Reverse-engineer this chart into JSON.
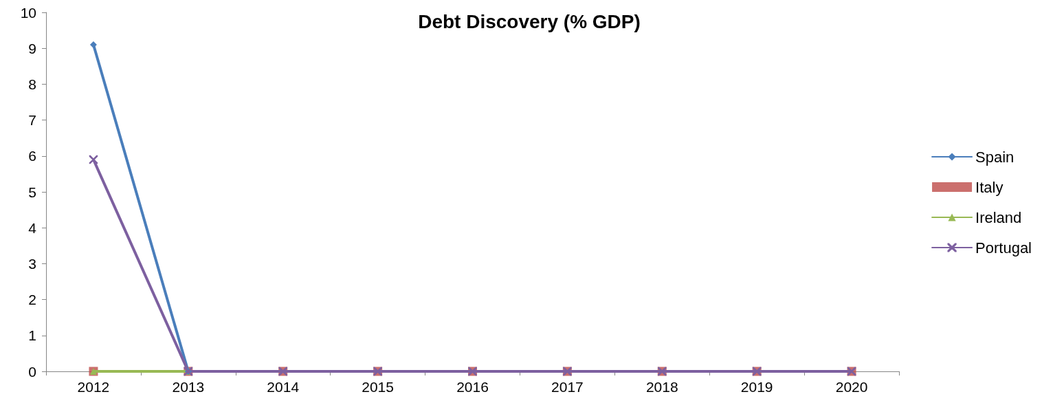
{
  "chart_data": {
    "type": "line",
    "title": "Debt Discovery (% GDP)",
    "categories": [
      "2012",
      "2013",
      "2014",
      "2015",
      "2016",
      "2017",
      "2018",
      "2019",
      "2020"
    ],
    "series": [
      {
        "name": "Italy",
        "type": "scatter",
        "color": "#be4b48",
        "marker": "square",
        "values": [
          0,
          0,
          0,
          0,
          0,
          0,
          0,
          0,
          0
        ]
      },
      {
        "name": "Ireland",
        "color": "#98b954",
        "marker": "triangle",
        "values": [
          0,
          0,
          null,
          null,
          null,
          null,
          null,
          null,
          null
        ]
      },
      {
        "name": "Spain",
        "color": "#4a7ebb",
        "marker": "diamond",
        "values": [
          9.1,
          0,
          null,
          null,
          null,
          null,
          null,
          null,
          null
        ]
      },
      {
        "name": "Portugal",
        "color": "#7d60a0",
        "marker": "cross",
        "values": [
          5.9,
          0,
          0,
          0,
          0,
          0,
          0,
          0,
          0
        ]
      }
    ],
    "ylim": [
      0,
      10
    ],
    "yticks": [
      0,
      1,
      2,
      3,
      4,
      5,
      6,
      7,
      8,
      9,
      10
    ],
    "grid": false,
    "legend": "right",
    "line_style": "solid"
  }
}
